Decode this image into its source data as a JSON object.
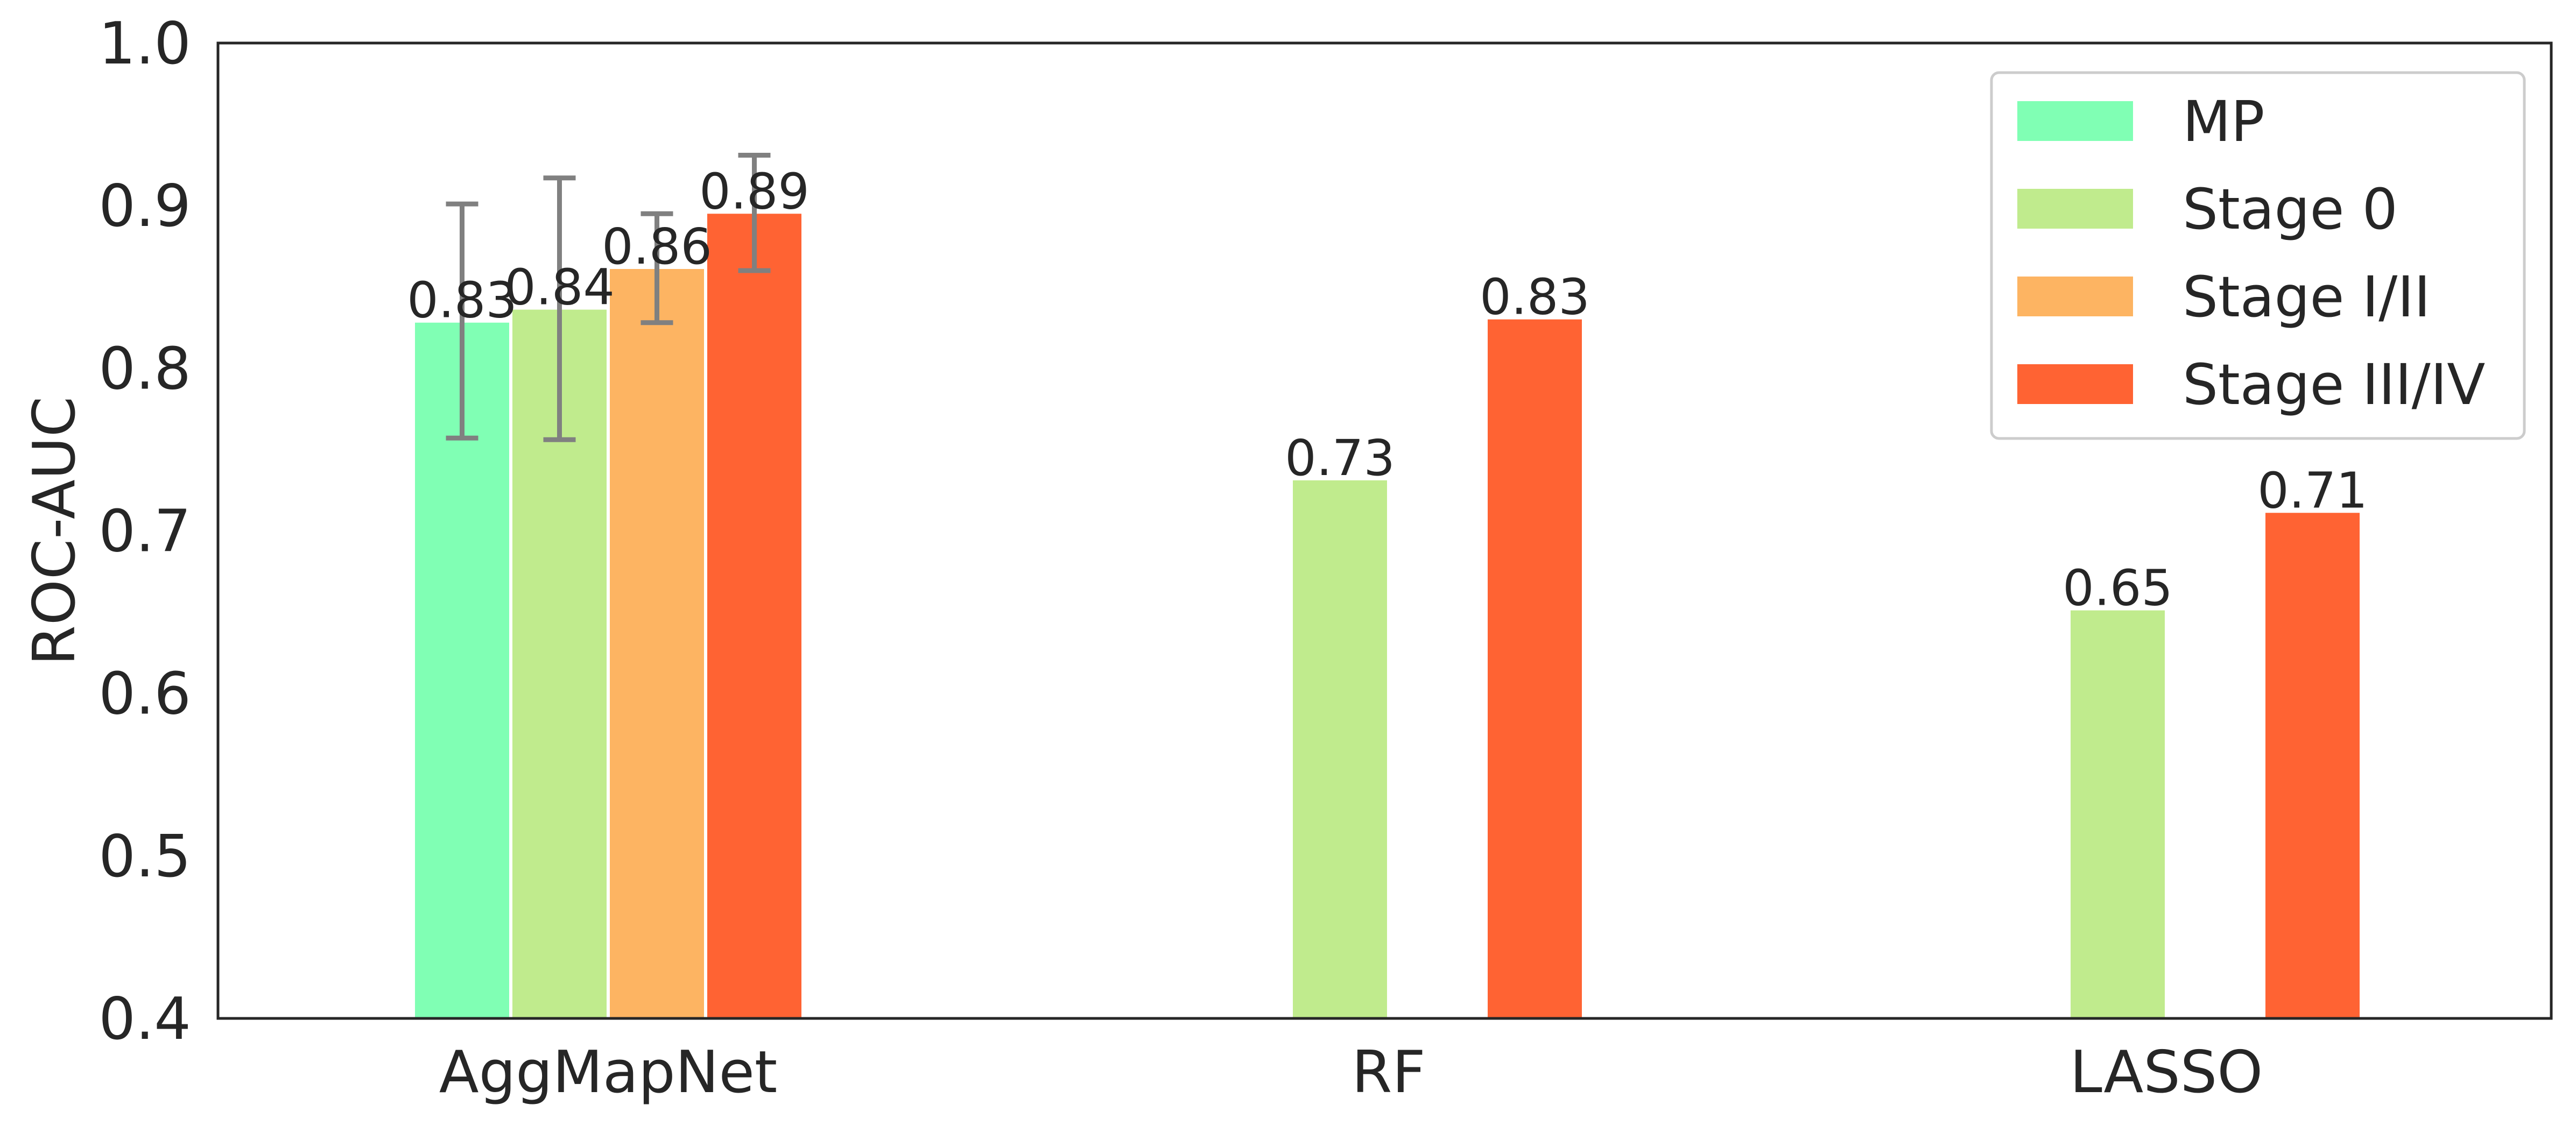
{
  "chart_data": {
    "type": "bar",
    "title": "",
    "xlabel": "",
    "ylabel": "ROC-AUC",
    "ylim": [
      0.4,
      1.0
    ],
    "yticks": [
      "0.4",
      "0.5",
      "0.6",
      "0.7",
      "0.8",
      "0.9",
      "1.0"
    ],
    "categories": [
      "AggMapNet",
      "RF",
      "LASSO"
    ],
    "grid": false,
    "legend_position": "top-right",
    "series": [
      {
        "name": "MP",
        "color": "#80FFB4",
        "values": [
          0.828,
          null,
          null
        ],
        "labels": [
          "0.83",
          "",
          ""
        ],
        "error": [
          [
            0.757,
            0.901
          ],
          null,
          null
        ]
      },
      {
        "name": "Stage 0",
        "color": "#C0EB8D",
        "values": [
          0.836,
          0.731,
          0.651
        ],
        "labels": [
          "0.84",
          "0.73",
          "0.65"
        ],
        "error": [
          [
            0.756,
            0.917
          ],
          null,
          null
        ]
      },
      {
        "name": "Stage I/II",
        "color": "#FDB462",
        "values": [
          0.861,
          null,
          null
        ],
        "labels": [
          "0.86",
          "",
          ""
        ],
        "error": [
          [
            0.828,
            0.895
          ],
          null,
          null
        ]
      },
      {
        "name": "Stage III/IV",
        "color": "#FF6333",
        "values": [
          0.895,
          0.83,
          0.711
        ],
        "labels": [
          "0.89",
          "0.83",
          "0.71"
        ],
        "error": [
          [
            0.86,
            0.931
          ],
          null,
          null
        ]
      }
    ],
    "error_bar_color": "#808080"
  }
}
